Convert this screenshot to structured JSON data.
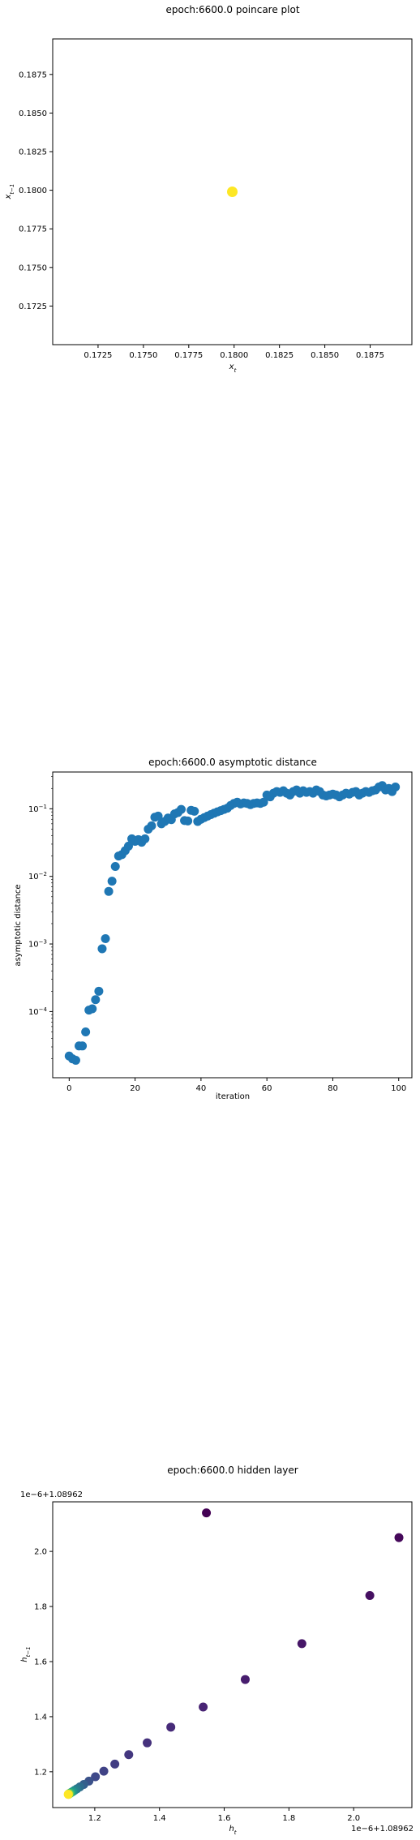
{
  "chart_data": [
    {
      "type": "scatter",
      "title": "epoch:6600.0 poincare plot",
      "xlabel": "x_t",
      "ylabel": "x_{t-1}",
      "xlim": [
        0.17,
        0.1898
      ],
      "ylim": [
        0.17,
        0.1898
      ],
      "xticks": [
        "0.1725",
        "0.1750",
        "0.1775",
        "0.1800",
        "0.1825",
        "0.1850",
        "0.1875"
      ],
      "yticks": [
        "0.1725",
        "0.1750",
        "0.1775",
        "0.1800",
        "0.1825",
        "0.1850",
        "0.1875"
      ],
      "points": [
        {
          "x": 0.1799,
          "y": 0.1799
        }
      ],
      "point_color": "#fde725",
      "grid": false
    },
    {
      "type": "scatter",
      "title": "epoch:6600.0 asymptotic distance",
      "xlabel": "iteration",
      "ylabel": "asymptotic distance",
      "y_scale": "log",
      "xlim": [
        -5,
        104
      ],
      "ylim": [
        1.05e-05,
        0.35
      ],
      "xticks": [
        "0",
        "20",
        "40",
        "60",
        "80",
        "100"
      ],
      "yticks": [
        "10^-4",
        "10^-3",
        "10^-2",
        "10^-1"
      ],
      "point_color": "#1f77b4",
      "grid": false,
      "x": [
        0,
        1,
        2,
        3,
        4,
        5,
        6,
        7,
        8,
        9,
        10,
        11,
        12,
        13,
        14,
        15,
        16,
        17,
        18,
        19,
        20,
        21,
        22,
        23,
        24,
        25,
        26,
        27,
        28,
        29,
        30,
        31,
        32,
        33,
        34,
        35,
        36,
        37,
        38,
        39,
        40,
        41,
        42,
        43,
        44,
        45,
        46,
        47,
        48,
        49,
        50,
        51,
        52,
        53,
        54,
        55,
        56,
        57,
        58,
        59,
        60,
        61,
        62,
        63,
        64,
        65,
        66,
        67,
        68,
        69,
        70,
        71,
        72,
        73,
        74,
        75,
        76,
        77,
        78,
        79,
        80,
        81,
        82,
        83,
        84,
        85,
        86,
        87,
        88,
        89,
        90,
        91,
        92,
        93,
        94,
        95,
        96,
        97,
        98,
        99
      ],
      "y": [
        2.2e-05,
        2e-05,
        1.9e-05,
        3.1e-05,
        3.1e-05,
        5e-05,
        0.000105,
        0.00011,
        0.00015,
        0.0002,
        0.00085,
        0.0012,
        0.006,
        0.0085,
        0.014,
        0.02,
        0.021,
        0.024,
        0.028,
        0.036,
        0.033,
        0.035,
        0.032,
        0.036,
        0.05,
        0.056,
        0.075,
        0.078,
        0.06,
        0.065,
        0.073,
        0.069,
        0.084,
        0.088,
        0.098,
        0.067,
        0.066,
        0.095,
        0.092,
        0.065,
        0.07,
        0.074,
        0.078,
        0.082,
        0.086,
        0.09,
        0.094,
        0.098,
        0.102,
        0.112,
        0.12,
        0.125,
        0.118,
        0.122,
        0.12,
        0.115,
        0.12,
        0.122,
        0.12,
        0.125,
        0.16,
        0.15,
        0.17,
        0.18,
        0.175,
        0.185,
        0.17,
        0.16,
        0.18,
        0.19,
        0.17,
        0.185,
        0.175,
        0.18,
        0.17,
        0.19,
        0.18,
        0.16,
        0.155,
        0.16,
        0.165,
        0.16,
        0.15,
        0.16,
        0.17,
        0.165,
        0.175,
        0.18,
        0.16,
        0.17,
        0.18,
        0.175,
        0.185,
        0.19,
        0.21,
        0.22,
        0.19,
        0.2,
        0.18,
        0.21
      ]
    },
    {
      "type": "scatter",
      "title": "epoch:6600.0 hidden layer",
      "xlabel": "h_t",
      "ylabel": "h_{t-1}",
      "x_offset_text": "1e−6+1.08962",
      "y_offset_text": "1e−6+1.08962",
      "xlim": [
        1.07,
        2.18
      ],
      "ylim": [
        1.07,
        2.18
      ],
      "xticks": [
        "1.2",
        "1.4",
        "1.6",
        "1.8",
        "2.0"
      ],
      "yticks": [
        "1.2",
        "1.4",
        "1.6",
        "1.8",
        "2.0"
      ],
      "colormap": "viridis",
      "grid": false,
      "points": [
        {
          "x": 2.14,
          "y": 2.05,
          "c": 0.02
        },
        {
          "x": 2.05,
          "y": 1.84,
          "c": 0.04
        },
        {
          "x": 1.84,
          "y": 1.665,
          "c": 0.06
        },
        {
          "x": 1.665,
          "y": 1.535,
          "c": 0.08
        },
        {
          "x": 1.535,
          "y": 1.435,
          "c": 0.1
        },
        {
          "x": 1.435,
          "y": 1.362,
          "c": 0.12
        },
        {
          "x": 1.362,
          "y": 1.305,
          "c": 0.14
        },
        {
          "x": 1.305,
          "y": 1.262,
          "c": 0.16
        },
        {
          "x": 1.262,
          "y": 1.228,
          "c": 0.18
        },
        {
          "x": 1.228,
          "y": 1.202,
          "c": 0.2
        },
        {
          "x": 1.202,
          "y": 1.182,
          "c": 0.22
        },
        {
          "x": 1.182,
          "y": 1.166,
          "c": 0.25
        },
        {
          "x": 1.166,
          "y": 1.154,
          "c": 0.3
        },
        {
          "x": 1.154,
          "y": 1.145,
          "c": 0.35
        },
        {
          "x": 1.145,
          "y": 1.138,
          "c": 0.4
        },
        {
          "x": 1.138,
          "y": 1.133,
          "c": 0.45
        },
        {
          "x": 1.133,
          "y": 1.129,
          "c": 0.5
        },
        {
          "x": 1.129,
          "y": 1.126,
          "c": 0.55
        },
        {
          "x": 1.126,
          "y": 1.124,
          "c": 0.6
        },
        {
          "x": 1.124,
          "y": 1.122,
          "c": 0.65
        },
        {
          "x": 1.122,
          "y": 1.121,
          "c": 0.7
        },
        {
          "x": 1.121,
          "y": 1.12,
          "c": 0.75
        },
        {
          "x": 1.12,
          "y": 1.119,
          "c": 0.8
        },
        {
          "x": 1.119,
          "y": 1.119,
          "c": 0.85
        },
        {
          "x": 1.119,
          "y": 1.118,
          "c": 0.9
        },
        {
          "x": 1.118,
          "y": 1.118,
          "c": 1.0
        },
        {
          "x": 1.545,
          "y": 2.14,
          "c": 0.0
        }
      ]
    }
  ]
}
